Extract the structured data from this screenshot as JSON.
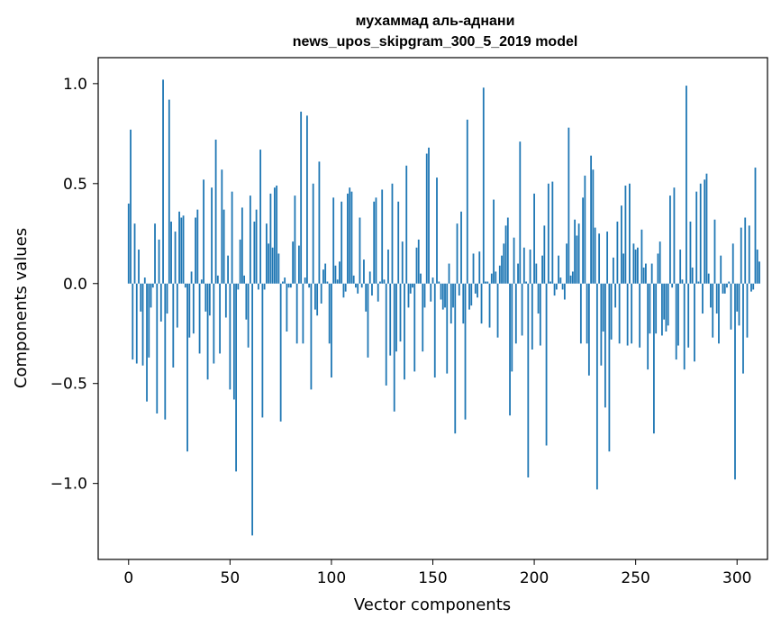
{
  "chart_data": {
    "type": "bar",
    "title": "мухаммад аль-аднани",
    "subtitle": "news_upos_skipgram_300_5_2019 model",
    "xlabel": "Vector components",
    "ylabel": "Components values",
    "xlim": [
      -15,
      315
    ],
    "ylim": [
      -1.38,
      1.13
    ],
    "grid": false,
    "bar_color": "#1f77b4",
    "x_ticks": [
      0,
      50,
      100,
      150,
      200,
      250,
      300
    ],
    "x_tick_labels": [
      "0",
      "50",
      "100",
      "150",
      "200",
      "250",
      "300"
    ],
    "y_ticks": [
      -1.0,
      -0.5,
      0.0,
      0.5,
      1.0
    ],
    "y_tick_labels": [
      "−1.0",
      "−0.5",
      "0.0",
      "0.5",
      "1.0"
    ],
    "values": [
      0.4,
      0.77,
      -0.38,
      0.3,
      -0.4,
      0.17,
      -0.14,
      -0.41,
      0.03,
      -0.59,
      -0.37,
      -0.12,
      -0.02,
      0.3,
      -0.65,
      0.22,
      -0.19,
      1.02,
      -0.68,
      -0.15,
      0.92,
      0.31,
      -0.42,
      0.26,
      -0.22,
      0.36,
      0.33,
      0.34,
      -0.02,
      -0.84,
      -0.27,
      0.06,
      -0.25,
      0.33,
      0.37,
      -0.35,
      0.02,
      0.52,
      -0.14,
      -0.48,
      -0.16,
      0.48,
      -0.4,
      0.72,
      0.04,
      -0.35,
      0.57,
      0.37,
      -0.17,
      0.14,
      -0.53,
      0.46,
      -0.58,
      -0.94,
      -0.03,
      0.22,
      0.38,
      0.04,
      -0.18,
      -0.32,
      0.44,
      -1.26,
      0.31,
      0.37,
      -0.03,
      0.67,
      -0.67,
      -0.03,
      0.3,
      0.2,
      0.45,
      0.18,
      0.48,
      0.49,
      0.15,
      -0.69,
      0.01,
      0.03,
      -0.24,
      -0.02,
      -0.02,
      0.21,
      0.44,
      -0.3,
      0.19,
      0.86,
      -0.3,
      0.03,
      0.84,
      -0.02,
      -0.53,
      0.5,
      -0.13,
      -0.16,
      0.61,
      -0.1,
      0.07,
      0.1,
      0.01,
      -0.3,
      -0.47,
      0.43,
      0.09,
      0.02,
      0.11,
      0.41,
      -0.07,
      -0.04,
      0.45,
      0.48,
      0.46,
      0.04,
      -0.02,
      -0.05,
      0.33,
      -0.02,
      0.12,
      -0.14,
      -0.37,
      0.06,
      -0.06,
      0.41,
      0.43,
      -0.09,
      0.01,
      0.47,
      0.02,
      -0.51,
      0.17,
      -0.36,
      0.5,
      -0.64,
      -0.34,
      0.41,
      -0.29,
      0.21,
      -0.48,
      0.59,
      -0.12,
      -0.05,
      -0.02,
      -0.44,
      0.18,
      0.22,
      0.05,
      -0.34,
      -0.12,
      0.65,
      0.68,
      -0.09,
      0.03,
      -0.47,
      0.53,
      0.01,
      -0.08,
      -0.13,
      -0.12,
      -0.45,
      0.1,
      -0.2,
      -0.12,
      -0.75,
      0.3,
      -0.06,
      0.36,
      -0.2,
      -0.68,
      0.82,
      -0.13,
      -0.11,
      0.15,
      -0.05,
      -0.07,
      0.16,
      -0.2,
      0.98,
      0.01,
      0.01,
      -0.22,
      0.05,
      0.42,
      0.06,
      -0.27,
      0.09,
      0.14,
      0.2,
      0.29,
      0.33,
      -0.66,
      -0.44,
      0.23,
      -0.3,
      0.1,
      0.71,
      -0.26,
      0.18,
      0.01,
      -0.97,
      0.17,
      -0.33,
      0.45,
      0.1,
      -0.15,
      -0.31,
      0.14,
      0.29,
      -0.81,
      0.5,
      0.01,
      0.51,
      -0.06,
      -0.03,
      0.14,
      0.03,
      -0.03,
      -0.08,
      0.2,
      0.78,
      0.04,
      0.06,
      0.32,
      0.24,
      0.3,
      -0.3,
      0.43,
      0.54,
      -0.3,
      -0.46,
      0.64,
      0.57,
      0.28,
      -1.03,
      0.25,
      -0.41,
      -0.24,
      -0.62,
      0.26,
      -0.84,
      -0.28,
      0.13,
      -0.12,
      0.31,
      -0.3,
      0.39,
      0.15,
      0.49,
      -0.31,
      0.5,
      -0.3,
      0.2,
      0.17,
      0.18,
      -0.32,
      0.27,
      0.08,
      0.1,
      -0.43,
      -0.25,
      0.1,
      -0.75,
      -0.25,
      0.15,
      0.21,
      -0.26,
      -0.18,
      -0.24,
      -0.21,
      0.44,
      -0.02,
      0.48,
      -0.38,
      -0.31,
      0.17,
      0.02,
      -0.43,
      0.99,
      -0.32,
      0.31,
      0.08,
      -0.39,
      0.46,
      0.01,
      0.5,
      -0.15,
      0.52,
      0.55,
      0.05,
      -0.12,
      -0.27,
      0.32,
      -0.15,
      -0.3,
      0.14,
      -0.05,
      -0.05,
      -0.02,
      0.01,
      -0.23,
      0.2,
      -0.98,
      -0.14,
      -0.21,
      0.28,
      -0.45,
      0.33,
      -0.27,
      0.29,
      -0.04,
      -0.03,
      0.58,
      0.17,
      0.11
    ]
  }
}
